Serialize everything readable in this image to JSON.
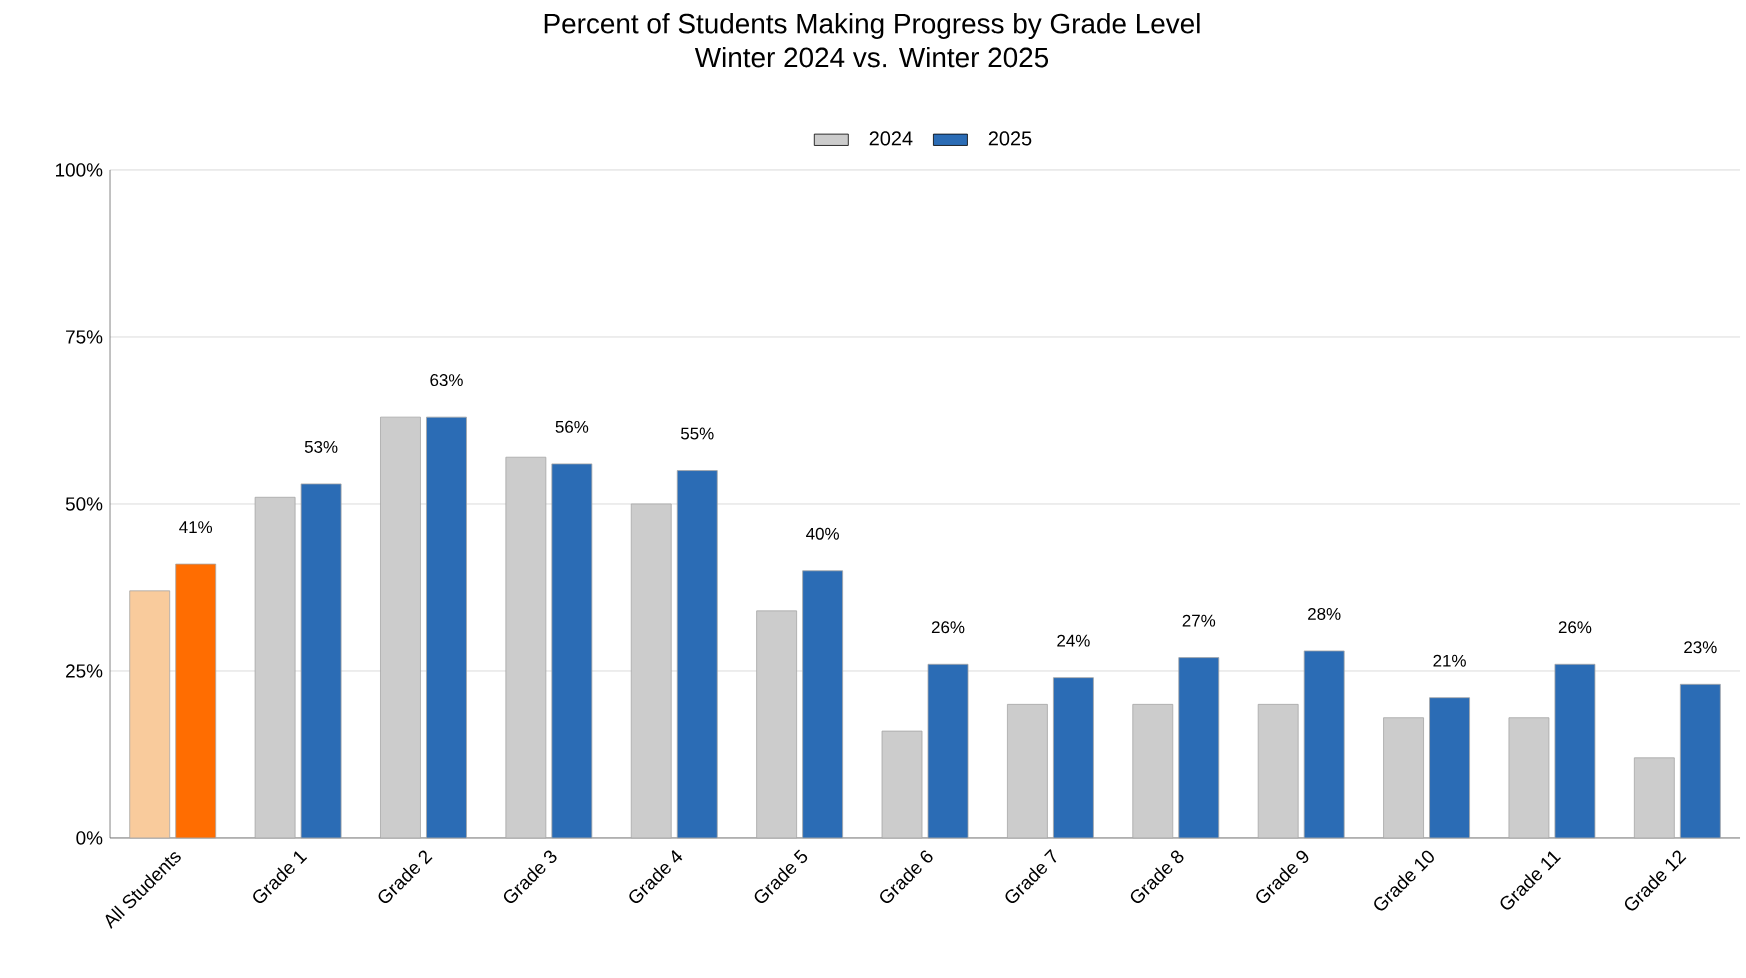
{
  "chart_data": {
    "type": "bar",
    "title": "Percent of Students Making Progress by Grade Level",
    "subtitle": "Winter 2024 vs. Winter 2025",
    "categories": [
      "All Students",
      "Grade 1",
      "Grade 2",
      "Grade 3",
      "Grade 4",
      "Grade 5",
      "Grade 6",
      "Grade 7",
      "Grade 8",
      "Grade 9",
      "Grade 10",
      "Grade 11",
      "Grade 12"
    ],
    "series": [
      {
        "name": "2024",
        "color": "#cccccc",
        "colors": [
          "#f9cb9c",
          "#cccccc",
          "#cccccc",
          "#cccccc",
          "#cccccc",
          "#cccccc",
          "#cccccc",
          "#cccccc",
          "#cccccc",
          "#cccccc",
          "#cccccc",
          "#cccccc",
          "#cccccc"
        ],
        "values": [
          37,
          51,
          63,
          57,
          50,
          34,
          16,
          20,
          20,
          20,
          18,
          18,
          12
        ]
      },
      {
        "name": "2025",
        "color": "#2b6cb5",
        "colors": [
          "#ff6d01",
          "#2b6cb5",
          "#2b6cb5",
          "#2b6cb5",
          "#2b6cb5",
          "#2b6cb5",
          "#2b6cb5",
          "#2b6cb5",
          "#2b6cb5",
          "#2b6cb5",
          "#2b6cb5",
          "#2b6cb5",
          "#2b6cb5"
        ],
        "values": [
          41,
          53,
          63,
          56,
          55,
          40,
          26,
          24,
          27,
          28,
          21,
          26,
          23
        ],
        "value_labels": [
          "41%",
          "53%",
          "63%",
          "56%",
          "55%",
          "40%",
          "26%",
          "24%",
          "27%",
          "28%",
          "21%",
          "26%",
          "23%"
        ]
      }
    ],
    "ylim": [
      0,
      100
    ],
    "yticks": [
      {
        "value": 0,
        "label": "0%"
      },
      {
        "value": 25,
        "label": "25%"
      },
      {
        "value": 50,
        "label": "50%"
      },
      {
        "value": 75,
        "label": "75%"
      },
      {
        "value": 100,
        "label": "100%"
      }
    ],
    "grid": "y",
    "legend": "top"
  }
}
